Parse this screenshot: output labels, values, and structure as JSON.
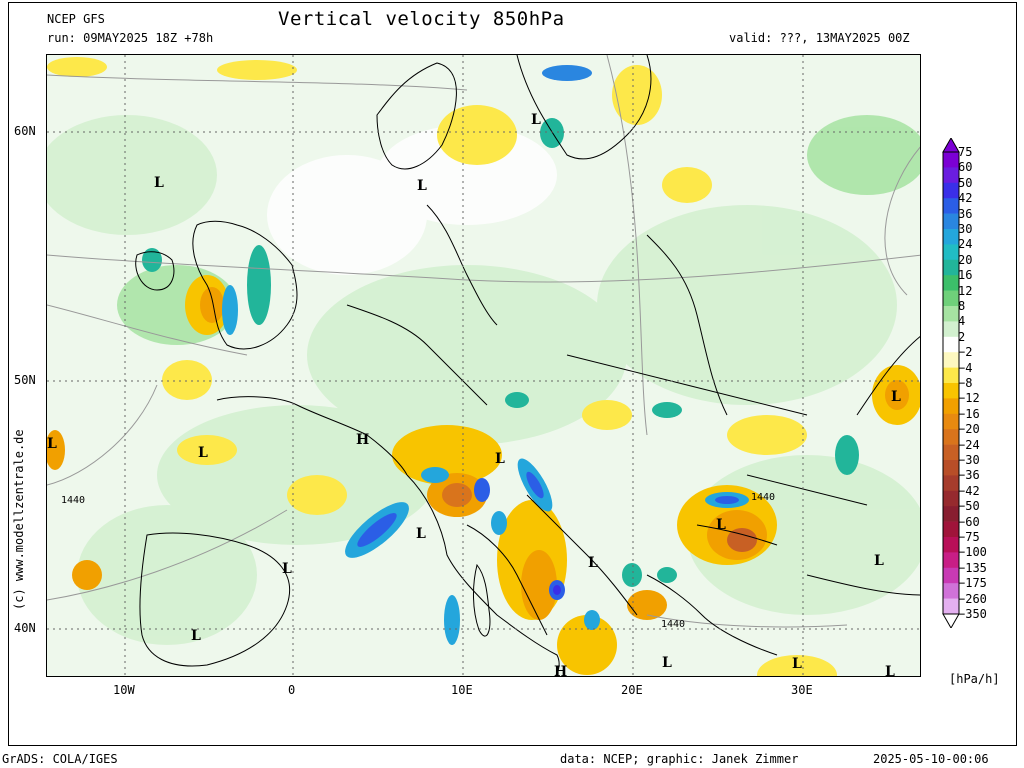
{
  "header": {
    "model": "NCEP GFS",
    "run": "run: 09MAY2025 18Z +78h",
    "title": "Vertical velocity 850hPa",
    "valid": "valid: ???, 13MAY2025 00Z"
  },
  "axes": {
    "lat_ticks": [
      "60N",
      "50N",
      "40N"
    ],
    "lon_ticks": [
      "10W",
      "0",
      "10E",
      "20E",
      "30E"
    ]
  },
  "pressure_labels": {
    "lows": [
      "L",
      "L",
      "L",
      "L",
      "L",
      "L",
      "L",
      "L",
      "L",
      "L",
      "L",
      "L",
      "L",
      "L",
      "L",
      "L"
    ],
    "highs": [
      "H",
      "H"
    ]
  },
  "contour_labels": [
    "1440",
    "1440",
    "1440"
  ],
  "colorbar": {
    "unit": "[hPa/h]",
    "labels": [
      "75",
      "60",
      "50",
      "42",
      "36",
      "30",
      "24",
      "20",
      "16",
      "12",
      "8",
      "4",
      "2",
      "−2",
      "−4",
      "−8",
      "−12",
      "−16",
      "−20",
      "−24",
      "−30",
      "−36",
      "−42",
      "−50",
      "−60",
      "−75",
      "−100",
      "−135",
      "−175",
      "−260",
      "−350"
    ],
    "colors": [
      "#7b00d4",
      "#6a1de0",
      "#3a2fe8",
      "#2b5ee6",
      "#2a86e0",
      "#24a6dc",
      "#21bcc4",
      "#22b59a",
      "#3cbf6a",
      "#6fd07a",
      "#a6e3a2",
      "#d2f0cf",
      "#ffffff",
      "#fdf8c0",
      "#fde84a",
      "#f8c400",
      "#f1a000",
      "#e88a10",
      "#d9741c",
      "#c86024",
      "#b84e28",
      "#a63c2c",
      "#962a2e",
      "#881e30",
      "#a0143a",
      "#b81058",
      "#c81e86",
      "#c83ab4",
      "#d072d8",
      "#e4b0f0"
    ]
  },
  "side_label": "(c) www.modellzentrale.de",
  "footer": {
    "left": "GrADS: COLA/IGES",
    "center": "data: NCEP; graphic: Janek Zimmer",
    "right": "2025-05-10-00:06"
  }
}
